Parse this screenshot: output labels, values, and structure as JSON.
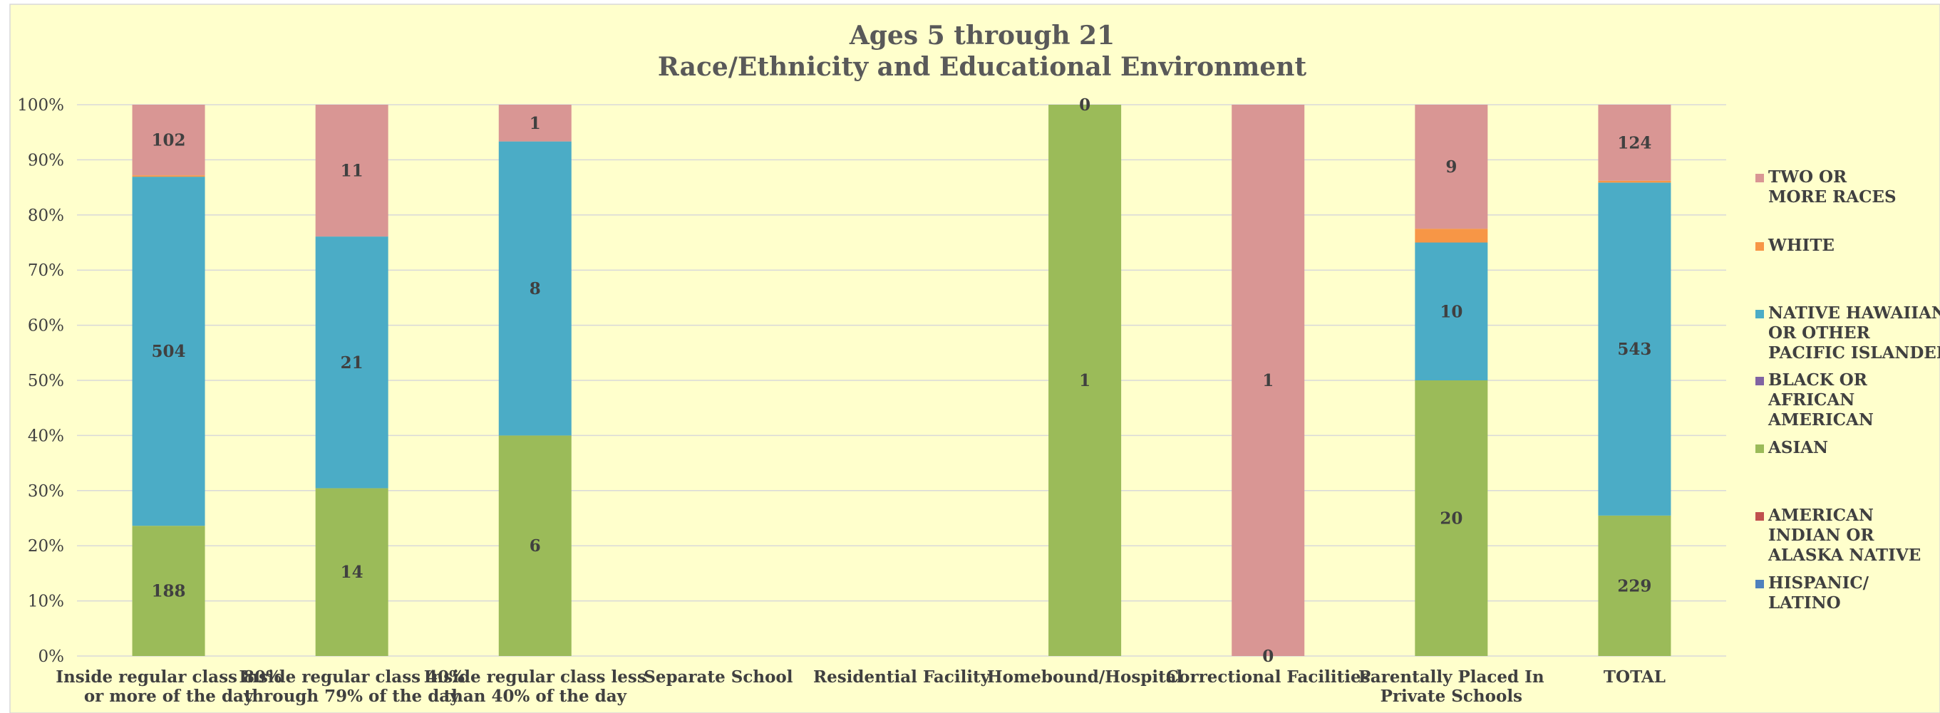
{
  "chart_data": {
    "type": "bar",
    "stacked": "percent",
    "title": "Ages 5 through 21",
    "subtitle": "Race/Ethnicity and Educational Environment",
    "xlabel": "",
    "ylabel": "",
    "ylim": [
      0,
      100
    ],
    "y_ticks": [
      "0%",
      "10%",
      "20%",
      "30%",
      "40%",
      "50%",
      "60%",
      "70%",
      "80%",
      "90%",
      "100%"
    ],
    "grid": true,
    "legend_position": "right",
    "categories": [
      [
        "Inside regular class 80%",
        "or more of the day"
      ],
      [
        "Inside regular class 40%",
        "through 79% of the day"
      ],
      [
        "Inside regular class less",
        "than 40% of the day"
      ],
      [
        "Separate School"
      ],
      [
        "Residential Facility"
      ],
      [
        "Homebound/Hospital"
      ],
      [
        "Correctional Facilities"
      ],
      [
        "Parentally Placed In",
        "Private Schools"
      ],
      [
        "TOTAL"
      ]
    ],
    "series": [
      {
        "name": [
          "HISPANIC/",
          "LATINO"
        ],
        "color": "#4f81bd",
        "values": [
          0,
          0,
          0,
          0,
          0,
          0,
          0,
          0,
          0
        ],
        "labels": [
          null,
          null,
          null,
          null,
          null,
          null,
          null,
          null,
          null
        ]
      },
      {
        "name": [
          "AMERICAN",
          "INDIAN OR",
          "ALASKA NATIVE"
        ],
        "color": "#c0504d",
        "values": [
          0,
          0,
          0,
          0,
          0,
          0,
          0,
          0,
          0
        ],
        "labels": [
          null,
          null,
          null,
          null,
          null,
          null,
          null,
          null,
          null
        ]
      },
      {
        "name": [
          "ASIAN"
        ],
        "color": "#9bbb59",
        "values": [
          188,
          14,
          6,
          0,
          0,
          1,
          0,
          20,
          229
        ],
        "labels": [
          "188",
          "14",
          "6",
          null,
          null,
          "1",
          null,
          "20",
          "229"
        ]
      },
      {
        "name": [
          "BLACK OR",
          "AFRICAN",
          "AMERICAN"
        ],
        "color": "#8064a2",
        "values": [
          0,
          0,
          0,
          0,
          0,
          0,
          0,
          0,
          0
        ],
        "labels": [
          null,
          null,
          null,
          null,
          null,
          null,
          null,
          null,
          null
        ]
      },
      {
        "name": [
          "NATIVE HAWAIIAN",
          "OR OTHER",
          "PACIFIC ISLANDER"
        ],
        "color": "#4bacc6",
        "values": [
          504,
          21,
          8,
          0,
          0,
          0,
          0,
          10,
          543
        ],
        "labels": [
          "504",
          "21",
          "8",
          null,
          null,
          null,
          null,
          "10",
          "543"
        ]
      },
      {
        "name": [
          "WHITE"
        ],
        "color": "#f79646",
        "values": [
          2,
          0,
          0,
          0,
          0,
          0,
          0,
          1,
          3
        ],
        "labels": [
          null,
          null,
          null,
          null,
          null,
          null,
          null,
          null,
          null
        ]
      },
      {
        "name": [
          "TWO OR",
          "MORE RACES"
        ],
        "color": "#d99694",
        "values": [
          102,
          11,
          1,
          0,
          0,
          0,
          1,
          9,
          124
        ],
        "labels": [
          "102",
          "11",
          "1",
          null,
          null,
          "0",
          "1",
          "9",
          "124"
        ]
      }
    ],
    "extra_labels": [
      {
        "category": 6,
        "text": "0"
      }
    ]
  }
}
